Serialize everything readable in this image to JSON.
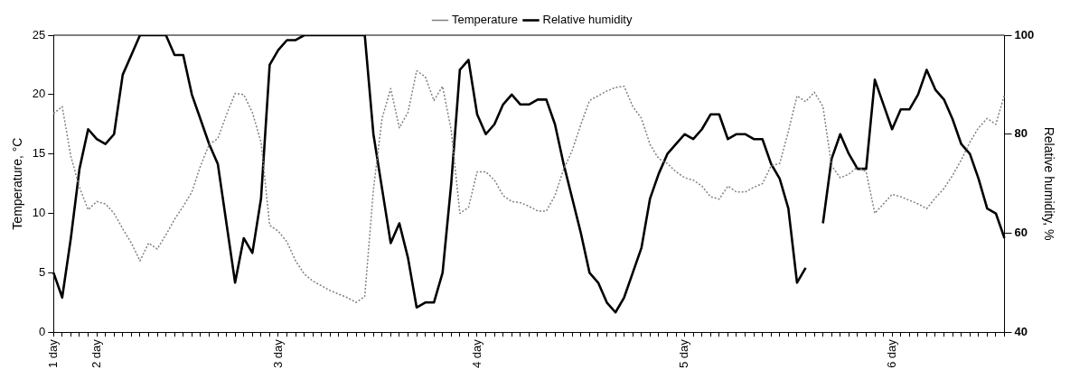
{
  "chart_data": {
    "type": "line",
    "ylabel": "Temperature, °C",
    "y2label": "Relative humidity, %",
    "legend": "top",
    "grid": false,
    "marker": "none",
    "categories": [
      "1 day",
      null,
      null,
      null,
      null,
      "2 day",
      null,
      null,
      null,
      null,
      null,
      null,
      null,
      null,
      null,
      null,
      null,
      null,
      null,
      null,
      null,
      null,
      null,
      null,
      null,
      null,
      "3 day",
      null,
      null,
      null,
      null,
      null,
      null,
      null,
      null,
      null,
      null,
      null,
      null,
      null,
      null,
      null,
      null,
      null,
      null,
      null,
      null,
      null,
      null,
      "4 day",
      null,
      null,
      null,
      null,
      null,
      null,
      null,
      null,
      null,
      null,
      null,
      null,
      null,
      null,
      null,
      null,
      null,
      null,
      null,
      null,
      null,
      null,
      null,
      "5 day",
      null,
      null,
      null,
      null,
      null,
      null,
      null,
      null,
      null,
      null,
      null,
      null,
      null,
      null,
      null,
      null,
      null,
      null,
      null,
      null,
      null,
      null,
      null,
      "6 day",
      null,
      null,
      null,
      null,
      null,
      null,
      null,
      null,
      null,
      null,
      null,
      null,
      null
    ],
    "ylim": [
      0,
      25
    ],
    "yticks": [
      0,
      5,
      10,
      15,
      20,
      25
    ],
    "y2lim": [
      40,
      100
    ],
    "y2ticks": [
      40,
      60,
      80,
      100
    ],
    "series": [
      {
        "name": "Temperature",
        "color": "#808080",
        "line_style": "dotted",
        "values": [
          18.4,
          19,
          14.8,
          12.2,
          10.3,
          11,
          10.8,
          10,
          8.7,
          7.5,
          6,
          7.5,
          7,
          8.2,
          9.5,
          10.6,
          11.8,
          14,
          15.8,
          16.3,
          18.3,
          20.1,
          20,
          18.5,
          16,
          9,
          8.5,
          7.6,
          6,
          4.9,
          4.3,
          3.9,
          3.5,
          3.2,
          2.9,
          2.5,
          3,
          12,
          18,
          20.5,
          17.2,
          18.5,
          22,
          21.5,
          19.5,
          20.7,
          17,
          10,
          10.5,
          13.5,
          13.5,
          12.8,
          11.5,
          11,
          10.9,
          10.6,
          10.2,
          10.2,
          11.5,
          13.7,
          15.3,
          17.5,
          19.5,
          19.9,
          20.3,
          20.6,
          20.7,
          19,
          18,
          15.8,
          14.6,
          14.2,
          13.5,
          13,
          12.8,
          12.3,
          11.4,
          11.2,
          12.3,
          11.8,
          11.8,
          12.2,
          12.5,
          14,
          14.2,
          16.9,
          19.9,
          19.4,
          20.2,
          19,
          14,
          13,
          13.3,
          13.9,
          13.5,
          10,
          10.8,
          11.6,
          11.4,
          11.1,
          10.8,
          10.4,
          11.3,
          12.1,
          13.2,
          14.5,
          16,
          17.2,
          18,
          17.5,
          20
        ]
      },
      {
        "name": "Relative humidity",
        "color": "#000000",
        "line_style": "solid",
        "axis": "y2",
        "values": [
          52,
          47,
          59,
          73,
          81,
          79,
          78,
          80,
          92,
          96,
          100,
          100,
          100,
          100,
          96,
          96,
          88,
          83,
          78,
          74,
          62,
          50,
          59,
          56,
          67,
          94,
          97,
          99,
          99,
          100,
          100,
          100,
          100,
          100,
          100,
          100,
          100,
          80,
          69,
          58,
          62,
          55,
          45,
          46,
          46,
          52,
          70,
          93,
          95,
          84,
          80,
          82,
          86,
          88,
          86,
          86,
          87,
          87,
          82,
          74,
          67,
          60,
          52,
          50,
          46,
          44,
          47,
          52,
          57,
          67,
          72,
          76,
          78,
          80,
          79,
          81,
          84,
          84,
          79,
          80,
          80,
          79,
          79,
          74,
          71,
          65,
          50,
          53,
          null,
          62,
          75,
          80,
          76,
          73,
          73,
          91,
          86,
          81,
          85,
          85,
          88,
          93,
          89,
          87,
          83,
          78,
          76,
          71,
          65,
          64,
          59
        ]
      }
    ]
  }
}
